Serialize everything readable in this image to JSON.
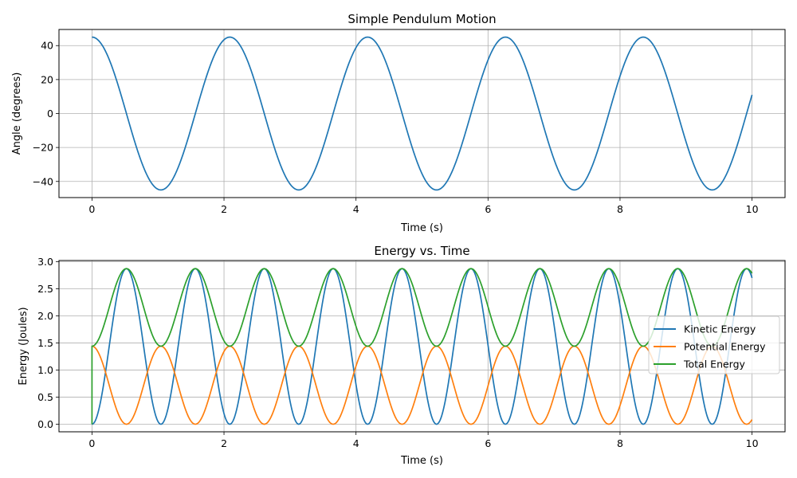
{
  "chart_data": [
    {
      "type": "line",
      "title": "Simple Pendulum Motion",
      "xlabel": "Time (s)",
      "ylabel": "Angle (degrees)",
      "xlim": [
        -0.5,
        10.5
      ],
      "ylim": [
        -49.5,
        49.5
      ],
      "xticks": [
        0,
        2,
        4,
        6,
        8,
        10
      ],
      "xtick_labels": [
        "0",
        "2",
        "4",
        "6",
        "8",
        "10"
      ],
      "yticks": [
        -40,
        -20,
        0,
        20,
        40
      ],
      "ytick_labels": [
        "−40",
        "−20",
        "0",
        "20",
        "40"
      ],
      "grid": true,
      "series": [
        {
          "color": "#1f77b4",
          "amplitude": 45,
          "period": 2.088,
          "x_range": [
            0,
            10
          ]
        }
      ]
    },
    {
      "type": "line",
      "title": "Energy vs. Time",
      "xlabel": "Time (s)",
      "ylabel": "Energy (Joules)",
      "xlim": [
        -0.5,
        10.5
      ],
      "ylim": [
        -0.14,
        3.02
      ],
      "xticks": [
        0,
        2,
        4,
        6,
        8,
        10
      ],
      "xtick_labels": [
        "0",
        "2",
        "4",
        "6",
        "8",
        "10"
      ],
      "yticks": [
        0,
        0.5,
        1,
        1.5,
        2,
        2.5,
        3
      ],
      "ytick_labels": [
        "0.0",
        "0.5",
        "1.0",
        "1.5",
        "2.0",
        "2.5",
        "3.0"
      ],
      "grid": true,
      "legend_position": "center-right",
      "series": [
        {
          "name": "Kinetic Energy",
          "color": "#1f77b4",
          "peak": 2.87,
          "period": 1.044,
          "x_range": [
            0,
            10
          ]
        },
        {
          "name": "Potential Energy",
          "color": "#ff7f0e",
          "peak": 1.44,
          "period": 1.044,
          "x_range": [
            0,
            10
          ]
        },
        {
          "name": "Total Energy",
          "color": "#2ca02c",
          "min": 1.44,
          "max": 2.87,
          "period": 1.044,
          "x_range": [
            0,
            10
          ]
        }
      ]
    }
  ]
}
